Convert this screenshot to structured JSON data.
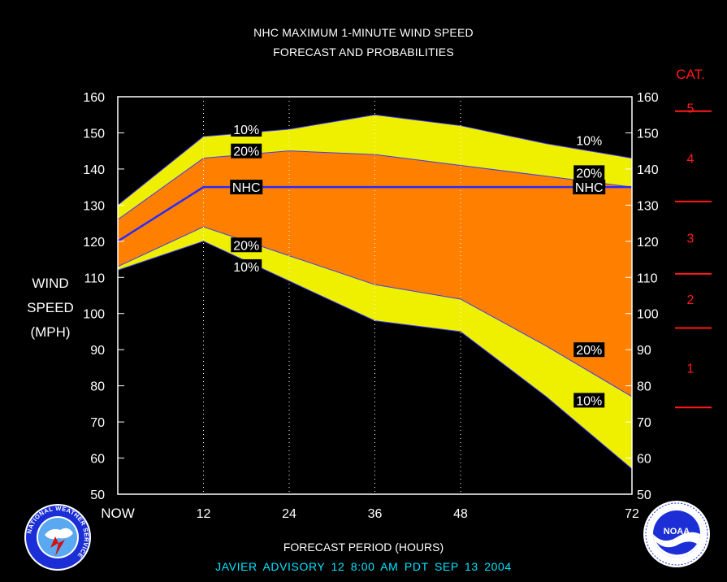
{
  "title_line1": "NHC MAXIMUM 1-MINUTE WIND SPEED",
  "title_line2": "FORECAST AND PROBABILITIES",
  "ylabel_lines": [
    "WIND",
    "SPEED",
    "(MPH)"
  ],
  "xlabel": "FORECAST PERIOD (HOURS)",
  "footer": "JAVIER   ADVISORY  12 8:00  AM  PDT  SEP  13  2004",
  "logos": {
    "nws_text": "NATIONAL WEATHER SERVICE",
    "noaa_text": "NOAA"
  },
  "chart_data": {
    "type": "area",
    "ylim": [
      50,
      160
    ],
    "xlim": [
      0,
      72
    ],
    "yticks": [
      50,
      60,
      70,
      80,
      90,
      100,
      110,
      120,
      130,
      140,
      150,
      160
    ],
    "xticks": [
      {
        "value": 0,
        "label": "NOW"
      },
      {
        "value": 12,
        "label": "12"
      },
      {
        "value": 24,
        "label": "24"
      },
      {
        "value": 36,
        "label": "36"
      },
      {
        "value": 48,
        "label": "48"
      },
      {
        "value": 72,
        "label": "72"
      }
    ],
    "x": [
      0,
      12,
      24,
      36,
      48,
      60,
      72
    ],
    "series": [
      {
        "name": "10%",
        "values": [
          130,
          149,
          151,
          155,
          152,
          147,
          143
        ]
      },
      {
        "name": "20%",
        "values": [
          126,
          143,
          145,
          144,
          141,
          138,
          135
        ]
      },
      {
        "name": "NHC",
        "values": [
          120,
          135,
          135,
          135,
          135,
          135,
          135
        ]
      },
      {
        "name": "20%",
        "values": [
          113,
          124,
          116,
          108,
          104,
          91,
          77
        ]
      },
      {
        "name": "10%",
        "values": [
          112,
          120,
          109,
          98,
          95,
          77,
          57
        ]
      }
    ],
    "band_labels": [
      {
        "text": "10%",
        "x": 18,
        "y": 151
      },
      {
        "text": "20%",
        "x": 18,
        "y": 145
      },
      {
        "text": "NHC",
        "x": 18,
        "y": 135
      },
      {
        "text": "20%",
        "x": 18,
        "y": 119
      },
      {
        "text": "10%",
        "x": 18,
        "y": 113
      },
      {
        "text": "10%",
        "x": 66,
        "y": 148
      },
      {
        "text": "20%",
        "x": 66,
        "y": 139
      },
      {
        "text": "NHC",
        "x": 66,
        "y": 135
      },
      {
        "text": "20%",
        "x": 66,
        "y": 90
      },
      {
        "text": "10%",
        "x": 66,
        "y": 76
      }
    ],
    "colors": {
      "outer_band": "#eef000",
      "inner_band": "#ff8000",
      "nhc_line": "#2a2aff",
      "edge_line": "#3a3aff",
      "category": "#ff1a1a",
      "background": "#000000"
    },
    "category_label": "CAT.",
    "categories": [
      {
        "label": "5",
        "threshold": 156,
        "mid": 157
      },
      {
        "label": "4",
        "threshold": 131,
        "mid": 143
      },
      {
        "label": "3",
        "threshold": 111,
        "mid": 121
      },
      {
        "label": "2",
        "threshold": 96,
        "mid": 104
      },
      {
        "label": "1",
        "threshold": 74,
        "mid": 85
      }
    ]
  }
}
